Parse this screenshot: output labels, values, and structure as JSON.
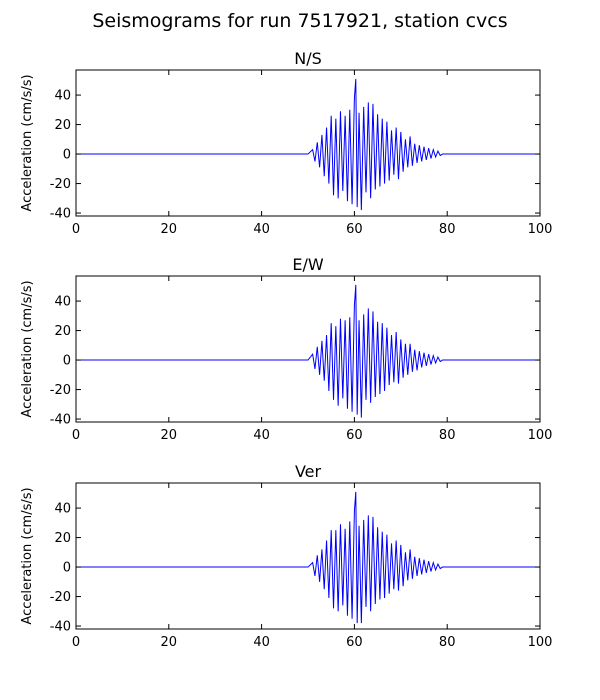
{
  "figure_title": "Seismograms for run 7517921, station cvcs",
  "colors": {
    "trace": "#0000ff",
    "axes": "#000000",
    "background": "#ffffff"
  },
  "chart_data": [
    {
      "type": "line",
      "title": "N/S",
      "xlabel": "",
      "ylabel": "Acceleration (cm/s/s)",
      "xlim": [
        0,
        100
      ],
      "ylim": [
        -42,
        57
      ],
      "xticks": [
        0,
        20,
        40,
        60,
        80,
        100
      ],
      "yticks": [
        -40,
        -20,
        0,
        20,
        40
      ],
      "grid": false,
      "series": [
        {
          "x": [
            0,
            50,
            51,
            51.5,
            52,
            52.5,
            53,
            53.5,
            54,
            54.5,
            55,
            55.5,
            56,
            56.5,
            57,
            57.5,
            58,
            58.5,
            59,
            59.5,
            60,
            60.3,
            60.6,
            61,
            61.5,
            62,
            62.5,
            63,
            63.5,
            64,
            64.5,
            65,
            65.5,
            66,
            66.5,
            67,
            67.5,
            68,
            68.5,
            69,
            69.5,
            70,
            70.5,
            71,
            71.5,
            72,
            72.5,
            73,
            73.5,
            74,
            74.5,
            75,
            75.5,
            76,
            76.5,
            77,
            77.5,
            78,
            78.5,
            79,
            100
          ],
          "y": [
            0,
            0,
            3,
            -5,
            8,
            -9,
            13,
            -15,
            18,
            -20,
            26,
            -28,
            24,
            -30,
            29,
            -25,
            26,
            -32,
            30,
            -34,
            38,
            51,
            -36,
            28,
            -38,
            32,
            -26,
            35,
            -30,
            34,
            -24,
            27,
            -22,
            24,
            -20,
            22,
            -18,
            16,
            -14,
            18,
            -17,
            15,
            -12,
            10,
            -9,
            12,
            -8,
            7,
            -6,
            6,
            -5,
            5,
            -4,
            4,
            -3,
            3,
            -2,
            2,
            -1,
            0,
            0
          ]
        }
      ]
    },
    {
      "type": "line",
      "title": "E/W",
      "xlabel": "",
      "ylabel": "Acceleration (cm/s/s)",
      "xlim": [
        0,
        100
      ],
      "ylim": [
        -42,
        57
      ],
      "xticks": [
        0,
        20,
        40,
        60,
        80,
        100
      ],
      "yticks": [
        -40,
        -20,
        0,
        20,
        40
      ],
      "grid": false,
      "series": [
        {
          "x": [
            0,
            50,
            51,
            51.5,
            52,
            52.5,
            53,
            53.5,
            54,
            54.5,
            55,
            55.5,
            56,
            56.5,
            57,
            57.5,
            58,
            58.5,
            59,
            59.5,
            60,
            60.3,
            60.6,
            61,
            61.5,
            62,
            62.5,
            63,
            63.5,
            64,
            64.5,
            65,
            65.5,
            66,
            66.5,
            67,
            67.5,
            68,
            68.5,
            69,
            69.5,
            70,
            70.5,
            71,
            71.5,
            72,
            72.5,
            73,
            73.5,
            74,
            74.5,
            75,
            75.5,
            76,
            76.5,
            77,
            77.5,
            78,
            78.5,
            79,
            100
          ],
          "y": [
            0,
            0,
            4,
            -6,
            9,
            -10,
            13,
            -14,
            17,
            -21,
            25,
            -27,
            23,
            -31,
            28,
            -26,
            27,
            -33,
            29,
            -35,
            37,
            51,
            -37,
            27,
            -39,
            31,
            -27,
            35,
            -29,
            33,
            -25,
            26,
            -23,
            25,
            -21,
            22,
            -17,
            17,
            -15,
            19,
            -16,
            14,
            -12,
            11,
            -10,
            11,
            -8,
            7,
            -7,
            6,
            -5,
            5,
            -4,
            4,
            -3,
            3,
            -2,
            2,
            -1,
            0,
            0
          ]
        }
      ]
    },
    {
      "type": "line",
      "title": "Ver",
      "xlabel": "",
      "ylabel": "Acceleration (cm/s/s)",
      "xlim": [
        0,
        100
      ],
      "ylim": [
        -42,
        57
      ],
      "xticks": [
        0,
        20,
        40,
        60,
        80,
        100
      ],
      "yticks": [
        -40,
        -20,
        0,
        20,
        40
      ],
      "grid": false,
      "series": [
        {
          "x": [
            0,
            50,
            51,
            51.5,
            52,
            52.5,
            53,
            53.5,
            54,
            54.5,
            55,
            55.5,
            56,
            56.5,
            57,
            57.5,
            58,
            58.5,
            59,
            59.5,
            60,
            60.3,
            60.6,
            61,
            61.5,
            62,
            62.5,
            63,
            63.5,
            64,
            64.5,
            65,
            65.5,
            66,
            66.5,
            67,
            67.5,
            68,
            68.5,
            69,
            69.5,
            70,
            70.5,
            71,
            71.5,
            72,
            72.5,
            73,
            73.5,
            74,
            74.5,
            75,
            75.5,
            76,
            76.5,
            77,
            77.5,
            78,
            78.5,
            79,
            100
          ],
          "y": [
            0,
            0,
            3,
            -6,
            8,
            -10,
            12,
            -15,
            18,
            -21,
            25,
            -28,
            25,
            -30,
            29,
            -26,
            26,
            -33,
            31,
            -35,
            38,
            51,
            -38,
            28,
            -38,
            32,
            -27,
            35,
            -30,
            34,
            -25,
            27,
            -22,
            24,
            -21,
            22,
            -18,
            16,
            -15,
            18,
            -16,
            15,
            -13,
            10,
            -9,
            12,
            -8,
            7,
            -6,
            6,
            -5,
            5,
            -4,
            4,
            -3,
            3,
            -2,
            2,
            -1,
            0,
            0
          ]
        }
      ]
    }
  ]
}
